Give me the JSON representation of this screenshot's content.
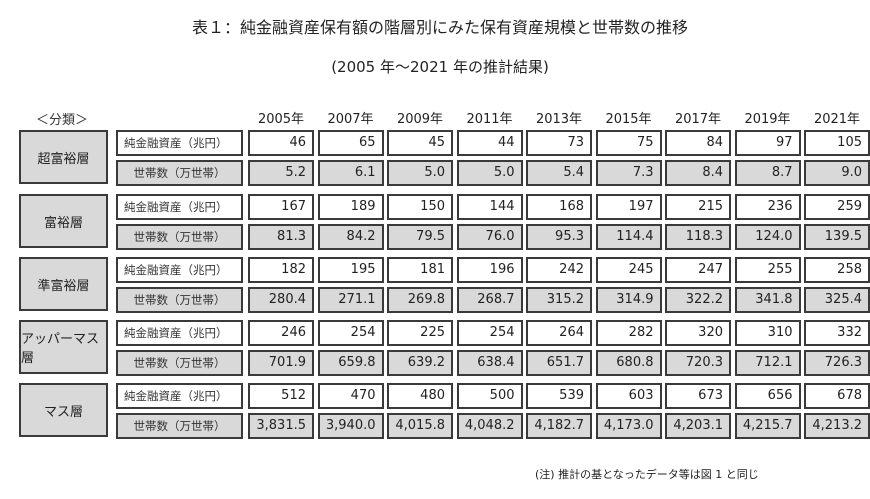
{
  "title": "表１：純金融資産保有額の階層別にみた保有資産規模と世帯数の推移",
  "subtitle": "(2005 年～2021 年の推計結果)",
  "category_header": "＜分類＞",
  "row_labels": {
    "assets": "純金融資産（兆円）",
    "households": "世帯数（万世帯）"
  },
  "years": [
    "2005年",
    "2007年",
    "2009年",
    "2011年",
    "2013年",
    "2015年",
    "2017年",
    "2019年",
    "2021年"
  ],
  "groups": [
    {
      "name": "超富裕層",
      "assets": [
        "46",
        "65",
        "45",
        "44",
        "73",
        "75",
        "84",
        "97",
        "105"
      ],
      "households": [
        "5.2",
        "6.1",
        "5.0",
        "5.0",
        "5.4",
        "7.3",
        "8.4",
        "8.7",
        "9.0"
      ]
    },
    {
      "name": "富裕層",
      "assets": [
        "167",
        "189",
        "150",
        "144",
        "168",
        "197",
        "215",
        "236",
        "259"
      ],
      "households": [
        "81.3",
        "84.2",
        "79.5",
        "76.0",
        "95.3",
        "114.4",
        "118.3",
        "124.0",
        "139.5"
      ]
    },
    {
      "name": "準富裕層",
      "assets": [
        "182",
        "195",
        "181",
        "196",
        "242",
        "245",
        "247",
        "255",
        "258"
      ],
      "households": [
        "280.4",
        "271.1",
        "269.8",
        "268.7",
        "315.2",
        "314.9",
        "322.2",
        "341.8",
        "325.4"
      ]
    },
    {
      "name": "アッパーマス層",
      "assets": [
        "246",
        "254",
        "225",
        "254",
        "264",
        "282",
        "320",
        "310",
        "332"
      ],
      "households": [
        "701.9",
        "659.8",
        "639.2",
        "638.4",
        "651.7",
        "680.8",
        "720.3",
        "712.1",
        "726.3"
      ]
    },
    {
      "name": "マス層",
      "assets": [
        "512",
        "470",
        "480",
        "500",
        "539",
        "603",
        "673",
        "656",
        "678"
      ],
      "households": [
        "3,831.5",
        "3,940.0",
        "4,015.8",
        "4,048.2",
        "4,182.7",
        "4,173.0",
        "4,203.1",
        "4,215.7",
        "4,213.2"
      ]
    }
  ],
  "note": "(注) 推計の基となったデータ等は図 1 と同じ",
  "colors": {
    "shaded_cell": "#d9d9d9",
    "border": "#3a3a3a",
    "background": "#ffffff"
  }
}
